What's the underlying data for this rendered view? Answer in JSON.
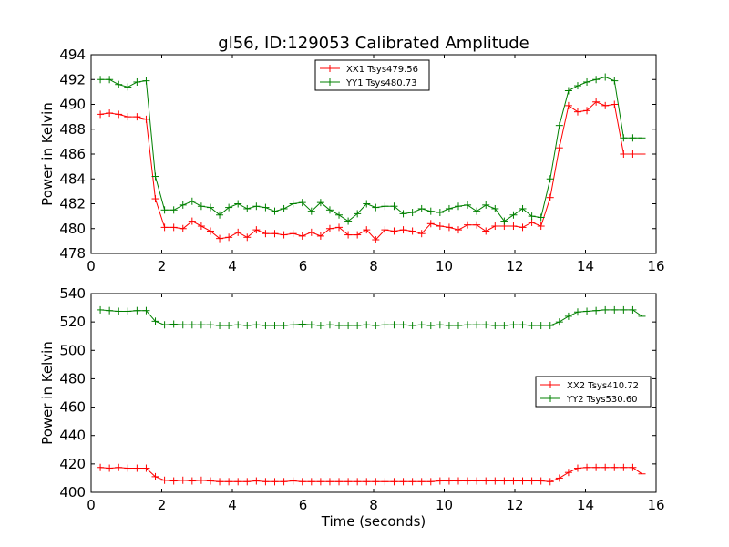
{
  "chart_data": [
    {
      "type": "line",
      "title": "gl56, ID:129053 Calibrated Amplitude",
      "xlabel": "",
      "ylabel": "Power in Kelvin",
      "xlim": [
        0,
        16
      ],
      "ylim": [
        478,
        494
      ],
      "xticks": [
        0,
        2,
        4,
        6,
        8,
        10,
        12,
        14,
        16
      ],
      "yticks": [
        478,
        480,
        482,
        484,
        486,
        488,
        490,
        492,
        494
      ],
      "grid": false,
      "legend_position": "top-center",
      "x": [
        0.26,
        0.52,
        0.78,
        1.04,
        1.3,
        1.56,
        1.82,
        2.08,
        2.34,
        2.6,
        2.86,
        3.12,
        3.38,
        3.64,
        3.9,
        4.16,
        4.42,
        4.68,
        4.94,
        5.2,
        5.46,
        5.72,
        5.98,
        6.24,
        6.5,
        6.76,
        7.02,
        7.28,
        7.54,
        7.8,
        8.06,
        8.32,
        8.58,
        8.84,
        9.1,
        9.36,
        9.62,
        9.88,
        10.14,
        10.4,
        10.66,
        10.92,
        11.18,
        11.44,
        11.7,
        11.96,
        12.22,
        12.48,
        12.74,
        13.0,
        13.26,
        13.52,
        13.78,
        14.04,
        14.3,
        14.56,
        14.82,
        15.08,
        15.34,
        15.6
      ],
      "series": [
        {
          "name": "XX1 Tsys479.56",
          "color": "#ff0000",
          "values": [
            489.2,
            489.3,
            489.2,
            489.0,
            489.0,
            488.8,
            482.4,
            480.1,
            480.1,
            480.0,
            480.6,
            480.2,
            479.8,
            479.2,
            479.3,
            479.7,
            479.3,
            479.9,
            479.6,
            479.6,
            479.5,
            479.6,
            479.4,
            479.7,
            479.4,
            480.0,
            480.1,
            479.5,
            479.5,
            479.9,
            479.1,
            479.9,
            479.8,
            479.9,
            479.8,
            479.6,
            480.4,
            480.2,
            480.1,
            479.9,
            480.3,
            480.3,
            479.8,
            480.2,
            480.2,
            480.2,
            480.1,
            480.5,
            480.2,
            482.5,
            486.5,
            489.9,
            489.4,
            489.5,
            490.2,
            489.9,
            490.0,
            486.0,
            486.0,
            486.0
          ]
        },
        {
          "name": "YY1 Tsys480.73",
          "color": "#008000",
          "values": [
            492.0,
            492.0,
            491.6,
            491.4,
            491.8,
            491.9,
            484.2,
            481.5,
            481.5,
            481.9,
            482.2,
            481.8,
            481.7,
            481.1,
            481.7,
            482.0,
            481.6,
            481.8,
            481.7,
            481.4,
            481.6,
            482.0,
            482.1,
            481.4,
            482.1,
            481.5,
            481.1,
            480.6,
            481.2,
            482.0,
            481.7,
            481.8,
            481.8,
            481.2,
            481.3,
            481.6,
            481.4,
            481.3,
            481.6,
            481.8,
            481.9,
            481.4,
            481.9,
            481.6,
            480.6,
            481.1,
            481.6,
            481.0,
            480.9,
            484.0,
            488.3,
            491.1,
            491.5,
            491.8,
            492.0,
            492.2,
            491.9,
            487.3,
            487.3,
            487.3
          ]
        }
      ]
    },
    {
      "type": "line",
      "title": "",
      "xlabel": "Time (seconds)",
      "ylabel": "Power in Kelvin",
      "xlim": [
        0,
        16
      ],
      "ylim": [
        400,
        540
      ],
      "xticks": [
        0,
        2,
        4,
        6,
        8,
        10,
        12,
        14,
        16
      ],
      "yticks": [
        400,
        420,
        440,
        460,
        480,
        500,
        520,
        540
      ],
      "grid": false,
      "legend_position": "center-right",
      "x": [
        0.26,
        0.52,
        0.78,
        1.04,
        1.3,
        1.56,
        1.82,
        2.08,
        2.34,
        2.6,
        2.86,
        3.12,
        3.38,
        3.64,
        3.9,
        4.16,
        4.42,
        4.68,
        4.94,
        5.2,
        5.46,
        5.72,
        5.98,
        6.24,
        6.5,
        6.76,
        7.02,
        7.28,
        7.54,
        7.8,
        8.06,
        8.32,
        8.58,
        8.84,
        9.1,
        9.36,
        9.62,
        9.88,
        10.14,
        10.4,
        10.66,
        10.92,
        11.18,
        11.44,
        11.7,
        11.96,
        12.22,
        12.48,
        12.74,
        13.0,
        13.26,
        13.52,
        13.78,
        14.04,
        14.3,
        14.56,
        14.82,
        15.08,
        15.34,
        15.6
      ],
      "series": [
        {
          "name": "XX2 Tsys410.72",
          "color": "#ff0000",
          "values": [
            417.5,
            417.0,
            417.5,
            417.0,
            417.0,
            417.0,
            411.0,
            408.5,
            408.0,
            408.5,
            408.0,
            408.5,
            408.0,
            407.5,
            407.5,
            407.5,
            407.5,
            408.0,
            407.5,
            407.5,
            407.5,
            408.0,
            407.5,
            407.5,
            407.5,
            407.5,
            407.5,
            407.5,
            407.5,
            407.5,
            407.5,
            407.5,
            407.5,
            407.5,
            407.5,
            407.5,
            407.5,
            408.0,
            408.0,
            408.0,
            408.0,
            408.0,
            408.0,
            408.0,
            408.0,
            408.0,
            408.0,
            408.0,
            408.0,
            407.5,
            410.0,
            414.0,
            417.0,
            417.5,
            417.5,
            417.5,
            417.5,
            417.5,
            417.5,
            413.0
          ]
        },
        {
          "name": "YY2 Tsys530.60",
          "color": "#008000",
          "values": [
            528.5,
            528.0,
            527.5,
            527.5,
            528.0,
            528.0,
            520.5,
            518.0,
            518.5,
            518.0,
            518.0,
            518.0,
            518.0,
            517.5,
            517.5,
            518.0,
            517.5,
            518.0,
            517.5,
            517.5,
            517.5,
            518.0,
            518.5,
            518.0,
            517.5,
            518.0,
            517.5,
            517.5,
            517.5,
            518.0,
            517.5,
            518.0,
            518.0,
            518.0,
            517.5,
            518.0,
            517.5,
            518.0,
            517.5,
            517.5,
            518.0,
            518.0,
            518.0,
            517.5,
            517.5,
            518.0,
            518.0,
            517.5,
            517.5,
            517.5,
            520.0,
            524.0,
            527.0,
            527.5,
            528.0,
            528.5,
            528.5,
            528.5,
            528.5,
            524.0
          ]
        }
      ]
    }
  ]
}
